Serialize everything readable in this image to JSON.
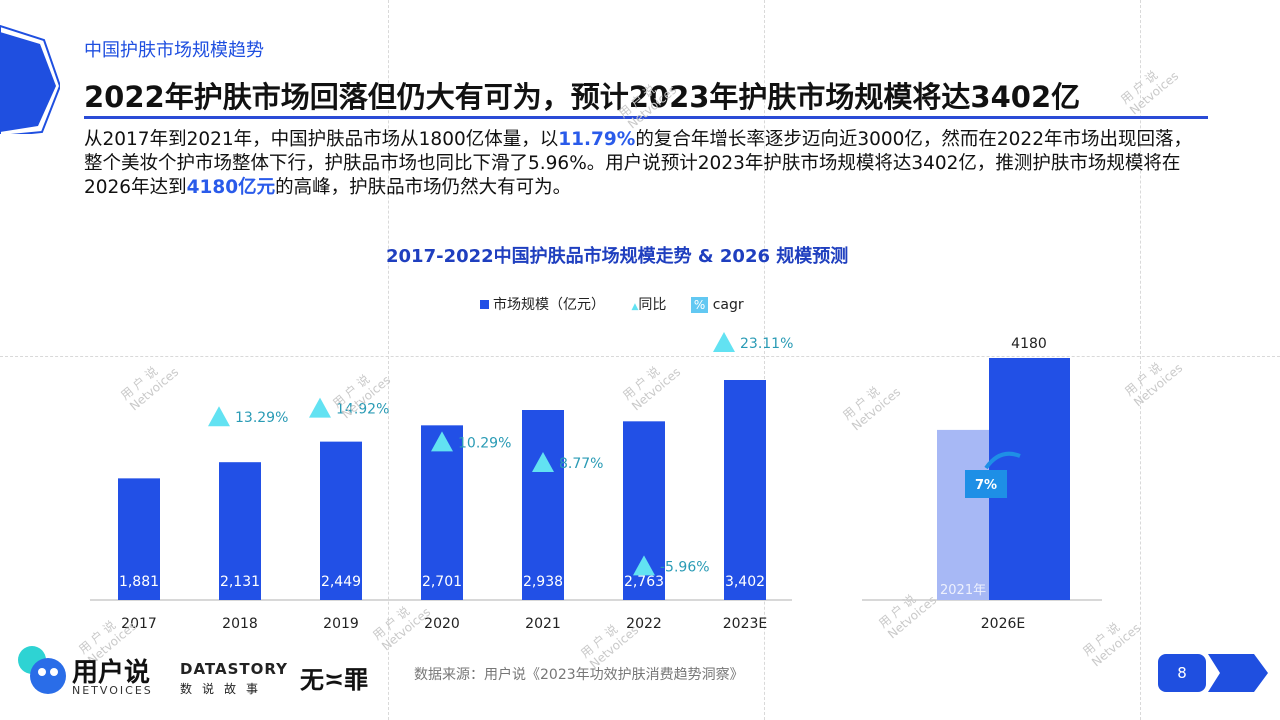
{
  "header": {
    "subtitle": "中国护肤市场规模趋势",
    "title": "2022年护肤市场回落但仍大有可为，预计2023年护肤市场规模将达3402亿"
  },
  "paragraph": {
    "p1": "从2017年到2021年，中国护肤品市场从1800亿体量，以",
    "hl1": "11.79%",
    "p2": "的复合年增长率逐步迈向近3000亿，然而在2022年市场出现回落，整个美妆个护市场整体下行，护肤品市场也同比下滑了5.96%。用户说预计2023年护肤市场规模将达3402亿，推测护肤市场规模将在2026年达到",
    "hl2": "4180亿元",
    "p3": "的高峰，护肤品市场仍然大有可为。"
  },
  "chart_data": [
    {
      "type": "bar",
      "title": "2017-2022中国护肤品市场规模走势 & 2026 规模预测",
      "legend": {
        "bar": "市场规模（亿元）",
        "triangle": "同比",
        "cagr_icon": "%",
        "cagr": "cagr"
      },
      "categories": [
        "2017",
        "2018",
        "2019",
        "2020",
        "2021",
        "2022",
        "2023E"
      ],
      "series": [
        {
          "name": "市场规模（亿元）",
          "values": [
            1881,
            2131,
            2449,
            2701,
            2938,
            2763,
            3402
          ],
          "labels": [
            "1,881",
            "2,131",
            "2,449",
            "2,701",
            "2,938",
            "2,763",
            "3,402"
          ]
        },
        {
          "name": "同比",
          "values": [
            null,
            13.29,
            14.92,
            10.29,
            8.77,
            -5.96,
            23.11
          ],
          "labels": [
            "",
            "13.29%",
            "14.92%",
            "10.29%",
            "8.77%",
            "-5.96%",
            "23.11%"
          ]
        }
      ],
      "ylim": [
        0,
        3402
      ],
      "colors": {
        "bar": "#2250e6",
        "triangle": "#62e2f2",
        "growth_text": "#2a9bb5",
        "label": "#ffffff"
      }
    },
    {
      "type": "bar",
      "categories": [
        "2026E"
      ],
      "series": [
        {
          "name": "2021年",
          "values": [
            2938
          ]
        },
        {
          "name": "市场规模（亿元）",
          "values": [
            4180
          ],
          "labels": [
            "4180"
          ]
        }
      ],
      "cagr_label": "7%",
      "ylim": [
        0,
        4180
      ],
      "colors": {
        "base": "#a7b8f5",
        "bar": "#2250e6",
        "badge": "#1e8fe6"
      }
    }
  ],
  "watermark": {
    "line1": "用 户 说",
    "line2": "Netvoices"
  },
  "footer": {
    "source": "数据来源：用户说《2023年功效护肤消费趋势洞察》",
    "logo_main": "用户说",
    "logo_sub": "NETVOICES",
    "ds_logo": "DATASTORY",
    "ds_sub": "数说故事",
    "wz_logo": "无≍罪",
    "page": "8"
  }
}
